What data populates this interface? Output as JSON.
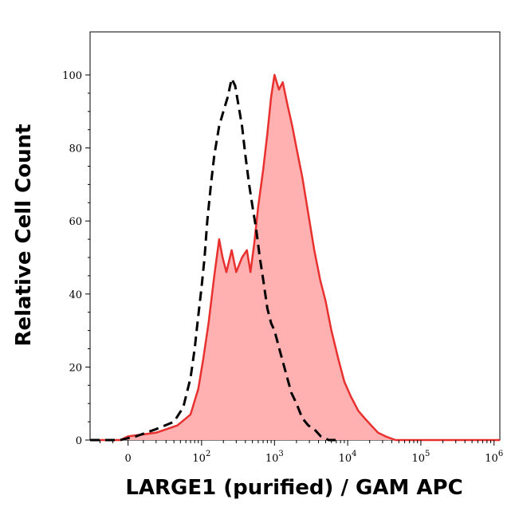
{
  "chart_data": {
    "type": "area",
    "title": "",
    "xlabel": "LARGE1 (purified) / GAM APC",
    "ylabel": "Relative Cell Count",
    "x_scale": "biexponential",
    "xlim": [
      -30,
      1200000
    ],
    "ylim": [
      0,
      105
    ],
    "x_ticks": [
      {
        "value": 0,
        "base": "0",
        "exp": ""
      },
      {
        "value": 100,
        "base": "10",
        "exp": "2"
      },
      {
        "value": 1000,
        "base": "10",
        "exp": "3"
      },
      {
        "value": 10000,
        "base": "10",
        "exp": "4"
      },
      {
        "value": 100000,
        "base": "10",
        "exp": "5"
      },
      {
        "value": 1000000,
        "base": "10",
        "exp": "6"
      }
    ],
    "y_ticks": [
      0,
      20,
      40,
      60,
      80,
      100
    ],
    "grid": false,
    "legend": "none",
    "series": [
      {
        "style": "filled-solid",
        "color": "#e8302f",
        "fill": "#ffb0b0",
        "points": [
          [
            -30,
            0
          ],
          [
            -5,
            0
          ],
          [
            0,
            1
          ],
          [
            20,
            2
          ],
          [
            45,
            4
          ],
          [
            70,
            7
          ],
          [
            90,
            14
          ],
          [
            105,
            22
          ],
          [
            125,
            32
          ],
          [
            150,
            45
          ],
          [
            175,
            55
          ],
          [
            195,
            50
          ],
          [
            220,
            46
          ],
          [
            260,
            52
          ],
          [
            300,
            46
          ],
          [
            360,
            50
          ],
          [
            420,
            52
          ],
          [
            470,
            46
          ],
          [
            530,
            54
          ],
          [
            600,
            64
          ],
          [
            700,
            74
          ],
          [
            800,
            84
          ],
          [
            900,
            94
          ],
          [
            1000,
            100
          ],
          [
            1150,
            96
          ],
          [
            1300,
            98
          ],
          [
            1500,
            92
          ],
          [
            1750,
            86
          ],
          [
            2000,
            80
          ],
          [
            2400,
            72
          ],
          [
            2900,
            62
          ],
          [
            3500,
            52
          ],
          [
            4200,
            44
          ],
          [
            5000,
            38
          ],
          [
            6000,
            30
          ],
          [
            7500,
            22
          ],
          [
            9000,
            16
          ],
          [
            11000,
            12
          ],
          [
            14000,
            8
          ],
          [
            17000,
            6
          ],
          [
            21000,
            4
          ],
          [
            26000,
            2
          ],
          [
            33000,
            1
          ],
          [
            45000,
            0
          ],
          [
            100000,
            0
          ],
          [
            1200000,
            0
          ]
        ]
      },
      {
        "style": "dashed",
        "color": "#000000",
        "points": [
          [
            -30,
            0
          ],
          [
            -5,
            0
          ],
          [
            5,
            1
          ],
          [
            20,
            3
          ],
          [
            40,
            5
          ],
          [
            55,
            9
          ],
          [
            70,
            17
          ],
          [
            80,
            25
          ],
          [
            90,
            34
          ],
          [
            100,
            42
          ],
          [
            110,
            50
          ],
          [
            120,
            60
          ],
          [
            135,
            70
          ],
          [
            150,
            78
          ],
          [
            175,
            86
          ],
          [
            200,
            90
          ],
          [
            230,
            94
          ],
          [
            260,
            99
          ],
          [
            290,
            97
          ],
          [
            320,
            92
          ],
          [
            360,
            86
          ],
          [
            400,
            78
          ],
          [
            450,
            70
          ],
          [
            500,
            64
          ],
          [
            560,
            58
          ],
          [
            630,
            50
          ],
          [
            700,
            44
          ],
          [
            800,
            36
          ],
          [
            900,
            32
          ],
          [
            1000,
            30
          ],
          [
            1200,
            24
          ],
          [
            1450,
            18
          ],
          [
            1700,
            13
          ],
          [
            2000,
            10
          ],
          [
            2400,
            6
          ],
          [
            2900,
            4
          ],
          [
            3500,
            3
          ],
          [
            4300,
            1
          ],
          [
            5500,
            0
          ],
          [
            8000,
            0
          ]
        ]
      }
    ]
  }
}
